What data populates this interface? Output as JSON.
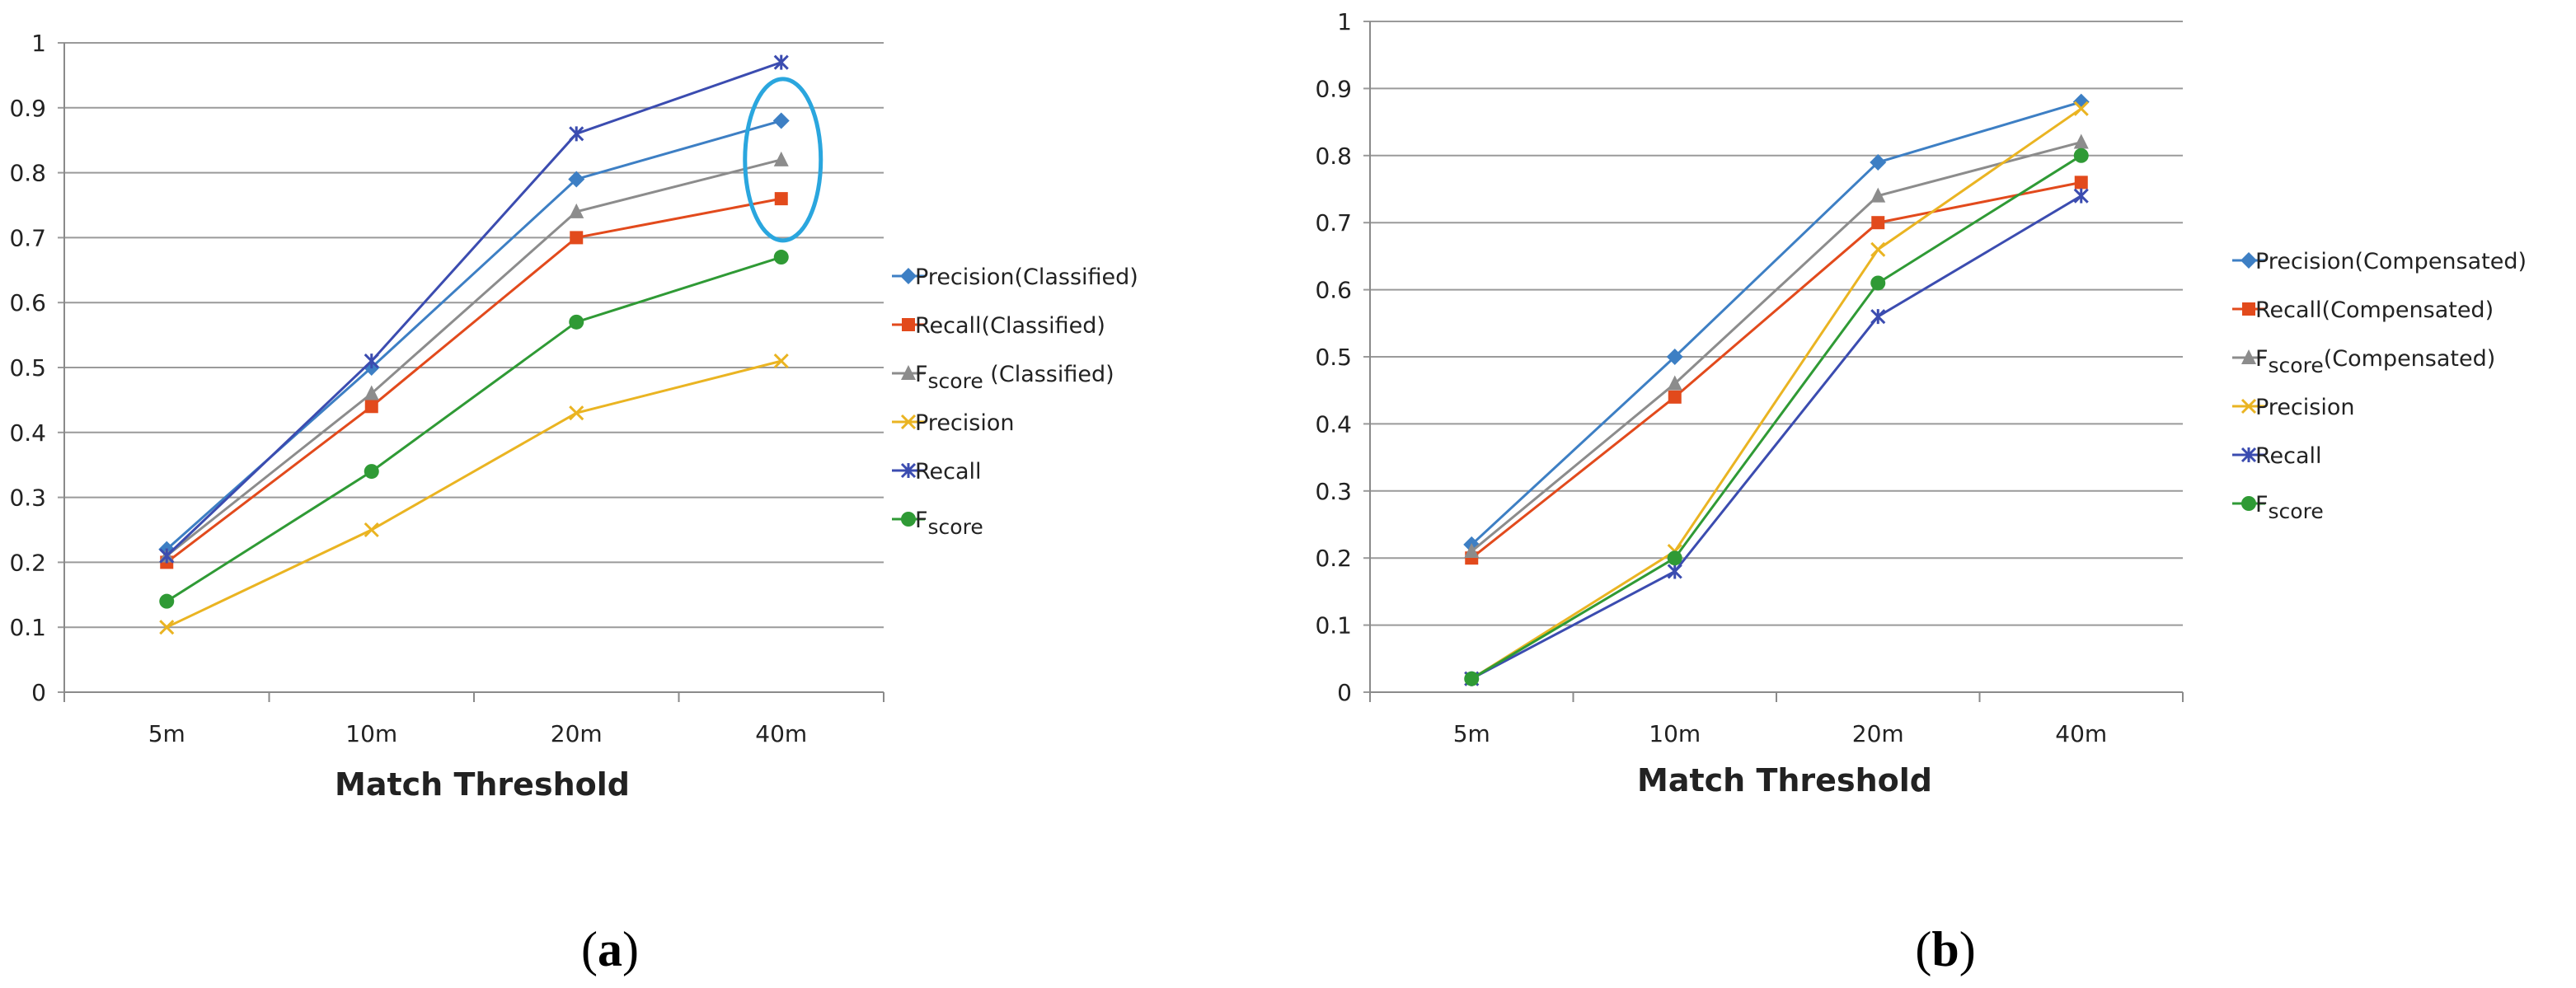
{
  "chart_data": [
    {
      "id": "a",
      "type": "line",
      "caption_prefix": "(",
      "caption_letter": "a",
      "caption_suffix": ")",
      "xlabel": "Match  Threshold",
      "ylabel": "",
      "categories": [
        "5m",
        "10m",
        "20m",
        "40m"
      ],
      "ylim": [
        0,
        1
      ],
      "yticks": [
        0,
        0.1,
        0.2,
        0.3,
        0.4,
        0.5,
        0.6,
        0.7,
        0.8,
        0.9,
        1
      ],
      "ytick_labels": [
        "0",
        "0.1",
        "0.2",
        "0.3",
        "0.4",
        "0.5",
        "0.6",
        "0.7",
        "0.8",
        "0.9",
        "1"
      ],
      "grid": "horizontal",
      "legend_position": "right",
      "series": [
        {
          "name": "Precision(Classified)",
          "color": "#3d7fc4",
          "marker": "diamond",
          "values": [
            0.22,
            0.5,
            0.79,
            0.88
          ]
        },
        {
          "name": "Recall(Classified)",
          "color": "#e24a1c",
          "marker": "square",
          "values": [
            0.2,
            0.44,
            0.7,
            0.76
          ]
        },
        {
          "name": "Fscore (Classified)",
          "name_main": "F",
          "name_sub": "score",
          "name_rest": " (Classified)",
          "color": "#8c8c8c",
          "marker": "triangle",
          "values": [
            0.21,
            0.46,
            0.74,
            0.82
          ]
        },
        {
          "name": "Precision",
          "color": "#eab422",
          "marker": "x",
          "values": [
            0.1,
            0.25,
            0.43,
            0.51
          ]
        },
        {
          "name": "Recall",
          "color": "#3b4cb0",
          "marker": "star",
          "values": [
            0.21,
            0.51,
            0.86,
            0.97
          ]
        },
        {
          "name": "Fscore",
          "name_main": "F",
          "name_sub": "score",
          "name_rest": "",
          "color": "#2f9a35",
          "marker": "circle",
          "values": [
            0.14,
            0.34,
            0.57,
            0.67
          ]
        }
      ],
      "annotations": [
        {
          "type": "ellipse",
          "color": "#2aa6de",
          "category": "40m",
          "y_center": 0.82
        }
      ]
    },
    {
      "id": "b",
      "type": "line",
      "caption_prefix": "(",
      "caption_letter": "b",
      "caption_suffix": ")",
      "xlabel": "Match  Threshold",
      "ylabel": "",
      "categories": [
        "5m",
        "10m",
        "20m",
        "40m"
      ],
      "ylim": [
        0,
        1
      ],
      "yticks": [
        0,
        0.1,
        0.2,
        0.3,
        0.4,
        0.5,
        0.6,
        0.7,
        0.8,
        0.9,
        1
      ],
      "ytick_labels": [
        "0",
        "0.1",
        "0.2",
        "0.3",
        "0.4",
        "0.5",
        "0.6",
        "0.7",
        "0.8",
        "0.9",
        "1"
      ],
      "grid": "horizontal",
      "legend_position": "right",
      "series": [
        {
          "name": "Precision(Compensated)",
          "color": "#3d7fc4",
          "marker": "diamond",
          "values": [
            0.22,
            0.5,
            0.79,
            0.88
          ]
        },
        {
          "name": "Recall(Compensated)",
          "color": "#e24a1c",
          "marker": "square",
          "values": [
            0.2,
            0.44,
            0.7,
            0.76
          ]
        },
        {
          "name": "Fscore(Compensated)",
          "name_main": "F",
          "name_sub": "score",
          "name_rest": "(Compensated)",
          "color": "#8c8c8c",
          "marker": "triangle",
          "values": [
            0.21,
            0.46,
            0.74,
            0.82
          ]
        },
        {
          "name": "Precision",
          "color": "#eab422",
          "marker": "x",
          "values": [
            0.02,
            0.21,
            0.66,
            0.87
          ]
        },
        {
          "name": "Recall",
          "color": "#3b4cb0",
          "marker": "star",
          "values": [
            0.02,
            0.18,
            0.56,
            0.74
          ]
        },
        {
          "name": "Fscore",
          "name_main": "F",
          "name_sub": "score",
          "name_rest": "",
          "color": "#2f9a35",
          "marker": "circle",
          "values": [
            0.02,
            0.2,
            0.61,
            0.8
          ]
        }
      ]
    }
  ]
}
